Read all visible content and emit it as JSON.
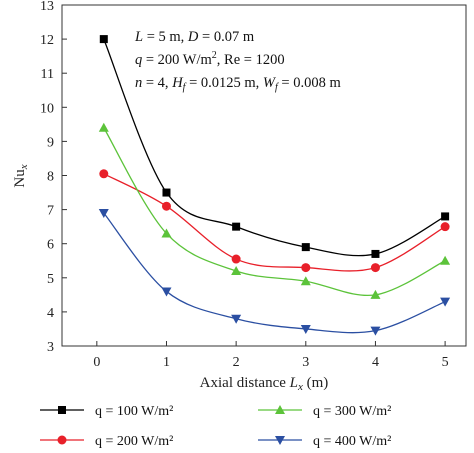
{
  "chart_data": {
    "type": "line",
    "xlabel": "Axial distance L_x (m)",
    "ylabel": "Nu_x",
    "xlim": [
      -0.5,
      5.3
    ],
    "ylim": [
      3,
      13
    ],
    "xticks": [
      0,
      1,
      2,
      3,
      4,
      5
    ],
    "yticks": [
      3,
      4,
      5,
      6,
      7,
      8,
      9,
      10,
      11,
      12,
      13
    ],
    "grid": false,
    "legend_position": "bottom",
    "annotations": [
      "L = 5 m, D = 0.07 m",
      "q = 200 W/m², Re = 1200",
      "n = 4, H_f = 0.0125 m, W_f = 0.008 m"
    ],
    "x": [
      0.1,
      1,
      2,
      3,
      4,
      5
    ],
    "series": [
      {
        "name": "q = 100 W/m²",
        "color": "#000000",
        "marker": "square",
        "values": [
          12.0,
          7.5,
          6.5,
          5.9,
          5.7,
          6.8
        ]
      },
      {
        "name": "q = 200 W/m²",
        "color": "#e8202a",
        "marker": "circle",
        "values": [
          8.05,
          7.1,
          5.55,
          5.3,
          5.3,
          6.5
        ]
      },
      {
        "name": "q = 300 W/m²",
        "color": "#5cc33a",
        "marker": "triangle-up",
        "values": [
          9.4,
          6.3,
          5.2,
          4.9,
          4.5,
          5.5
        ]
      },
      {
        "name": "q = 400 W/m²",
        "color": "#2b4fa2",
        "marker": "triangle-down",
        "values": [
          6.9,
          4.6,
          3.8,
          3.5,
          3.45,
          4.3
        ]
      }
    ]
  }
}
